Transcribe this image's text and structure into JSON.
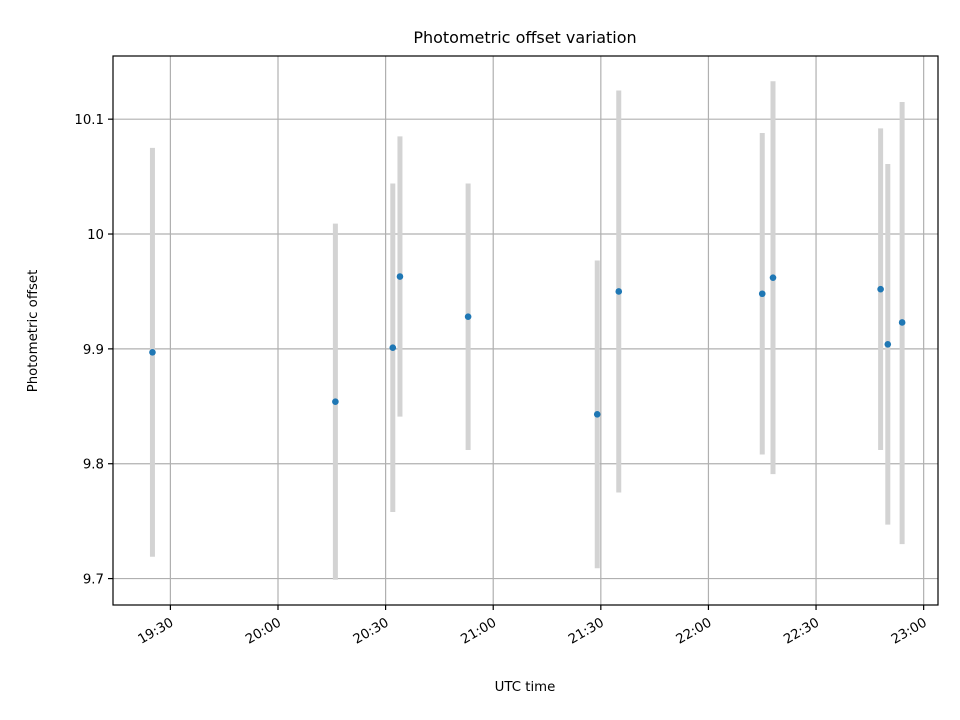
{
  "chart_data": {
    "type": "scatter",
    "title": "Photometric offset variation",
    "xlabel": "UTC time",
    "ylabel": "Photometric offset",
    "x_axis_type": "time",
    "xlim": [
      "19:14",
      "23:04"
    ],
    "ylim": [
      9.677,
      10.155
    ],
    "x_ticks": [
      "19:30",
      "20:00",
      "20:30",
      "21:00",
      "21:30",
      "22:00",
      "22:30",
      "23:00"
    ],
    "y_ticks": [
      9.7,
      9.8,
      9.9,
      10.0,
      10.1
    ],
    "grid": true,
    "legend": "none",
    "point_color": "#1f77b4",
    "errorbar_color": "#d3d3d3",
    "points": [
      {
        "x": "19:25",
        "y": 9.897,
        "yerr_low": 9.719,
        "yerr_high": 10.075
      },
      {
        "x": "20:16",
        "y": 9.854,
        "yerr_low": 9.699,
        "yerr_high": 10.009
      },
      {
        "x": "20:32",
        "y": 9.901,
        "yerr_low": 9.758,
        "yerr_high": 10.044
      },
      {
        "x": "20:34",
        "y": 9.963,
        "yerr_low": 9.841,
        "yerr_high": 10.085
      },
      {
        "x": "20:53",
        "y": 9.928,
        "yerr_low": 9.812,
        "yerr_high": 10.044
      },
      {
        "x": "21:29",
        "y": 9.843,
        "yerr_low": 9.709,
        "yerr_high": 9.977
      },
      {
        "x": "21:35",
        "y": 9.95,
        "yerr_low": 9.775,
        "yerr_high": 10.125
      },
      {
        "x": "22:15",
        "y": 9.948,
        "yerr_low": 9.808,
        "yerr_high": 10.088
      },
      {
        "x": "22:18",
        "y": 9.962,
        "yerr_low": 9.791,
        "yerr_high": 10.133
      },
      {
        "x": "22:48",
        "y": 9.952,
        "yerr_low": 9.812,
        "yerr_high": 10.092
      },
      {
        "x": "22:50",
        "y": 9.904,
        "yerr_low": 9.747,
        "yerr_high": 10.061
      },
      {
        "x": "22:54",
        "y": 9.923,
        "yerr_low": 9.73,
        "yerr_high": 10.115
      }
    ]
  }
}
